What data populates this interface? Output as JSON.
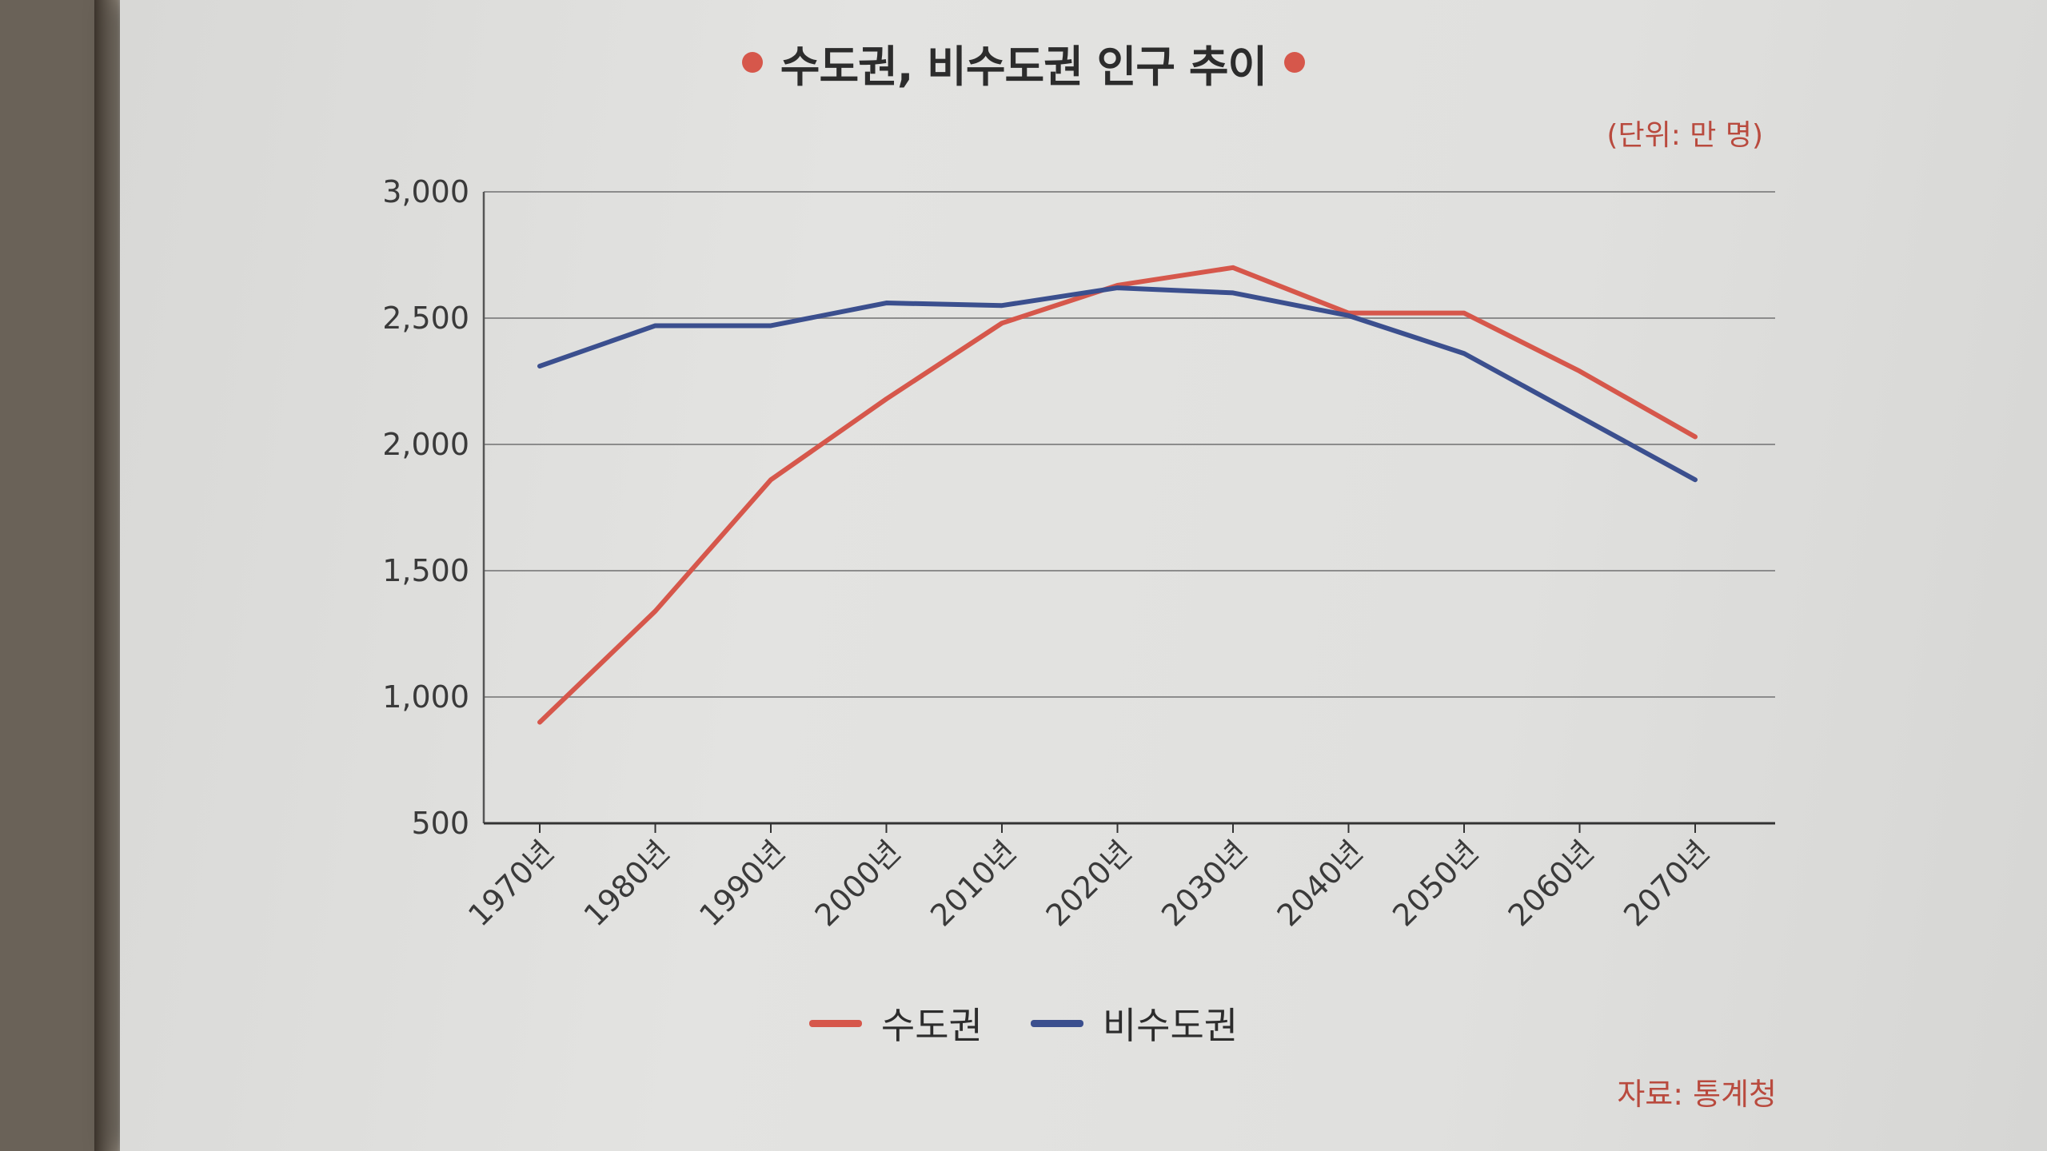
{
  "chart_data": {
    "type": "line",
    "title": "수도권, 비수도권 인구 추이",
    "unit_note": "(단위: 만 명)",
    "source": "자료: 통계청",
    "categories": [
      "1970년",
      "1980년",
      "1990년",
      "2000년",
      "2010년",
      "2020년",
      "2030년",
      "2040년",
      "2050년",
      "2060년",
      "2070년"
    ],
    "series": [
      {
        "name": "수도권",
        "color": "#d6574b",
        "values": [
          900,
          1340,
          1860,
          2180,
          2480,
          2630,
          2700,
          2520,
          2520,
          2290,
          2030
        ]
      },
      {
        "name": "비수도권",
        "color": "#3b4f8e",
        "values": [
          2310,
          2470,
          2470,
          2560,
          2550,
          2620,
          2600,
          2510,
          2360,
          2110,
          1860
        ]
      }
    ],
    "ylim": [
      500,
      3000
    ],
    "yticks": [
      "3,000",
      "2,500",
      "2,000",
      "1,500",
      "1,000",
      "500"
    ],
    "ytick_values": [
      3000,
      2500,
      2000,
      1500,
      1000,
      500
    ],
    "grid": true,
    "legend_position": "bottom"
  }
}
